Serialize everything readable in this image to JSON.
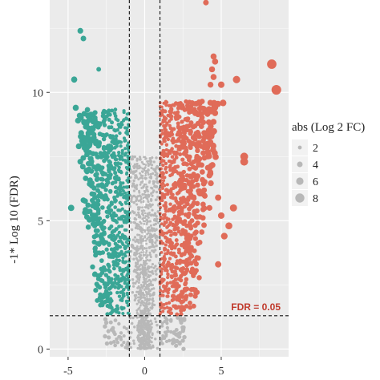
{
  "colors": {
    "panel": "#ebebeb",
    "grid_major": "#ffffff",
    "down": "#3aa696",
    "up": "#e06b58",
    "ns": "#b8b8b8",
    "fdr_text": "#c0392b"
  },
  "chart_data": {
    "type": "scatter",
    "title": "",
    "xlabel": "",
    "ylabel": "-1* Log 10 (FDR)",
    "xlim": [
      -6.2,
      9.4
    ],
    "ylim": [
      -0.3,
      13.6
    ],
    "x_ticks": [
      -5,
      0,
      5
    ],
    "x_tick_labels": [
      "-5",
      "0",
      "5"
    ],
    "y_ticks": [
      0,
      5,
      10
    ],
    "y_tick_labels": [
      "0",
      "5",
      "10"
    ],
    "grid": true,
    "thresholds": {
      "log2fc": [
        -1,
        1
      ],
      "neg_log10_fdr": 1.3,
      "label": "FDR = 0.05"
    },
    "legend": {
      "title": "abs (Log 2 FC)",
      "position": "right",
      "entries": [
        {
          "label": "2",
          "value": 2
        },
        {
          "label": "4",
          "value": 4
        },
        {
          "label": "6",
          "value": 6
        },
        {
          "label": "8",
          "value": 8
        }
      ]
    },
    "highlighted_points": {
      "up": [
        {
          "x": 4.0,
          "y": 13.5
        },
        {
          "x": 8.3,
          "y": 11.1
        },
        {
          "x": 8.6,
          "y": 10.1
        },
        {
          "x": 4.5,
          "y": 11.4
        },
        {
          "x": 4.6,
          "y": 11.2
        },
        {
          "x": 6.0,
          "y": 10.5
        },
        {
          "x": 4.4,
          "y": 10.9
        },
        {
          "x": 4.5,
          "y": 10.6
        },
        {
          "x": 4.3,
          "y": 10.3
        },
        {
          "x": 5.0,
          "y": 10.3
        },
        {
          "x": 4.3,
          "y": 8.8
        },
        {
          "x": 6.5,
          "y": 7.5
        },
        {
          "x": 6.5,
          "y": 7.3
        },
        {
          "x": 5.8,
          "y": 5.5
        },
        {
          "x": 4.8,
          "y": 5.9
        },
        {
          "x": 5.0,
          "y": 5.2
        },
        {
          "x": 4.8,
          "y": 3.3
        },
        {
          "x": 5.5,
          "y": 4.8
        },
        {
          "x": 5.2,
          "y": 4.4
        }
      ],
      "down": [
        {
          "x": -4.2,
          "y": 12.4
        },
        {
          "x": -4.0,
          "y": 12.1
        },
        {
          "x": -3.0,
          "y": 10.9
        },
        {
          "x": -4.6,
          "y": 10.5
        },
        {
          "x": -4.5,
          "y": 9.4
        },
        {
          "x": -4.3,
          "y": 7.9
        },
        {
          "x": -4.2,
          "y": 7.3
        },
        {
          "x": -4.8,
          "y": 5.5
        },
        {
          "x": -4.0,
          "y": 5.8
        },
        {
          "x": -3.1,
          "y": 5.5
        },
        {
          "x": -3.4,
          "y": 3.2
        }
      ]
    },
    "background_points_note_free": true
  }
}
